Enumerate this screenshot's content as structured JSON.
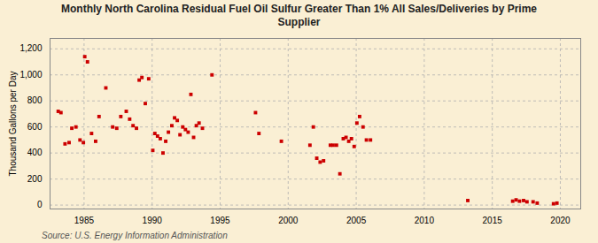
{
  "chart_data": {
    "type": "scatter",
    "title": "Monthly North Carolina Residual Fuel Oil Sulfur Greater Than 1% All Sales/Deliveries by Prime\nSupplier",
    "ylabel": "Thousand Gallons per Day",
    "source": "Source: U.S. Energy Information Administration",
    "color": "#cc0000",
    "marker": "square",
    "grid": true,
    "xlim": [
      1982.5,
      2021.5
    ],
    "ylim": [
      -30,
      1280
    ],
    "xticks": [
      1985,
      1990,
      1995,
      2000,
      2005,
      2010,
      2015,
      2020
    ],
    "yticks": [
      0,
      200,
      400,
      600,
      800,
      {
        "value": 1000,
        "label": "1,000"
      },
      {
        "value": 1200,
        "label": "1,200"
      }
    ],
    "x": [
      1983.1,
      1983.3,
      1983.6,
      1983.9,
      1984.1,
      1984.4,
      1984.7,
      1984.95,
      1985.05,
      1985.25,
      1985.55,
      1985.85,
      1986.1,
      1986.6,
      1987.1,
      1987.4,
      1987.7,
      1988.1,
      1988.35,
      1988.6,
      1988.85,
      1989.05,
      1989.25,
      1989.5,
      1989.75,
      1990.05,
      1990.2,
      1990.4,
      1990.6,
      1990.8,
      1991.0,
      1991.2,
      1991.45,
      1991.65,
      1991.85,
      1992.05,
      1992.25,
      1992.45,
      1992.65,
      1992.85,
      1993.05,
      1993.25,
      1993.45,
      1993.7,
      1994.4,
      1997.6,
      1997.85,
      1999.5,
      2001.6,
      2001.85,
      2002.1,
      2002.35,
      2002.6,
      2003.1,
      2003.3,
      2003.55,
      2003.8,
      2004.05,
      2004.25,
      2004.45,
      2004.65,
      2004.85,
      2005.05,
      2005.25,
      2005.5,
      2005.75,
      2006.05,
      2013.2,
      2016.5,
      2016.75,
      2017.0,
      2017.3,
      2017.55,
      2018.0,
      2018.3,
      2019.5,
      2019.75
    ],
    "values": [
      720,
      710,
      470,
      480,
      590,
      600,
      500,
      480,
      1140,
      1100,
      550,
      490,
      680,
      900,
      600,
      590,
      680,
      720,
      660,
      610,
      590,
      960,
      980,
      780,
      970,
      420,
      550,
      530,
      510,
      400,
      490,
      560,
      610,
      670,
      650,
      540,
      600,
      580,
      560,
      850,
      520,
      610,
      630,
      590,
      1000,
      710,
      550,
      490,
      460,
      600,
      360,
      330,
      340,
      460,
      460,
      460,
      240,
      510,
      520,
      490,
      510,
      450,
      630,
      680,
      600,
      500,
      500,
      35,
      30,
      40,
      30,
      35,
      25,
      25,
      15,
      10,
      15
    ]
  }
}
